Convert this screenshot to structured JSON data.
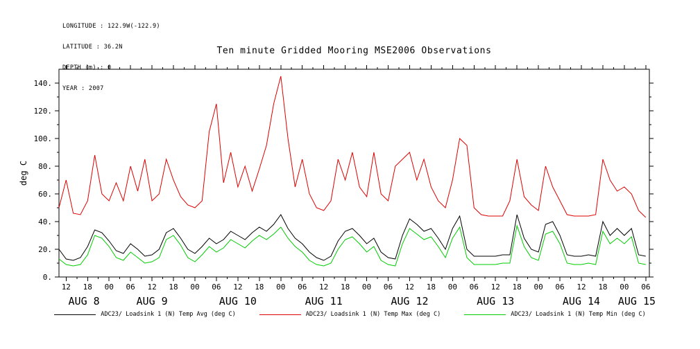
{
  "meta": {
    "longitude": "LONGITUDE : 122.9W(-122.9)",
    "latitude": "LATITUDE : 36.2N",
    "depth": "DEPTH (m) : 0",
    "year": "YEAR : 2007"
  },
  "title": "Ten minute Gridded Mooring MSE2006 Observations",
  "chart_data": {
    "type": "line",
    "title": "Ten minute Gridded Mooring MSE2006 Observations",
    "ylabel": "deg C",
    "xlabel": "",
    "ylim": [
      0,
      150
    ],
    "xlim": [
      10,
      175
    ],
    "grid": false,
    "legend_position": "bottom",
    "y_ticks": [
      0,
      20,
      40,
      60,
      80,
      100,
      120,
      140
    ],
    "y_tick_labels": [
      "0.",
      "20.",
      "40.",
      "60.",
      "80.",
      "100.",
      "120.",
      "140."
    ],
    "x_ticks": [
      12,
      18,
      24,
      30,
      36,
      42,
      48,
      54,
      60,
      66,
      72,
      78,
      84,
      90,
      96,
      102,
      108,
      114,
      120,
      126,
      132,
      138,
      144,
      150,
      156,
      162,
      168,
      174
    ],
    "x_tick_labels": [
      "12",
      "18",
      "00",
      "06",
      "12",
      "18",
      "00",
      "06",
      "12",
      "18",
      "00",
      "06",
      "12",
      "18",
      "00",
      "06",
      "12",
      "18",
      "00",
      "06",
      "12",
      "18",
      "00",
      "06",
      "12",
      "18",
      "00",
      "06"
    ],
    "x_dates": [
      {
        "t": 17,
        "label": "AUG 8"
      },
      {
        "t": 36,
        "label": "AUG 9"
      },
      {
        "t": 60,
        "label": "AUG 10"
      },
      {
        "t": 84,
        "label": "AUG 11"
      },
      {
        "t": 108,
        "label": "AUG 12"
      },
      {
        "t": 132,
        "label": "AUG 13"
      },
      {
        "t": 156,
        "label": "AUG 14"
      },
      {
        "t": 171.5,
        "label": "AUG 15"
      }
    ],
    "x_units": "hours since AUG 8 00:00 2007",
    "x": [
      10,
      12,
      14,
      16,
      18,
      20,
      22,
      24,
      26,
      28,
      30,
      32,
      34,
      36,
      38,
      40,
      42,
      44,
      46,
      48,
      50,
      52,
      54,
      56,
      58,
      60,
      62,
      64,
      66,
      68,
      70,
      72,
      74,
      76,
      78,
      80,
      82,
      84,
      86,
      88,
      90,
      92,
      94,
      96,
      98,
      100,
      102,
      104,
      106,
      108,
      110,
      112,
      114,
      116,
      118,
      120,
      122,
      124,
      126,
      128,
      130,
      132,
      134,
      136,
      138,
      140,
      142,
      144,
      146,
      148,
      150,
      152,
      154,
      156,
      158,
      160,
      162,
      164,
      166,
      168,
      170,
      172,
      174
    ],
    "series": [
      {
        "name": "ADC23/ Loadsink 1 (N) Temp Avg (deg C)",
        "color": "#000000",
        "values": [
          20,
          13,
          12,
          14,
          22,
          34,
          32,
          26,
          19,
          17,
          24,
          20,
          15,
          16,
          20,
          32,
          35,
          28,
          20,
          17,
          22,
          28,
          24,
          27,
          33,
          30,
          27,
          32,
          36,
          33,
          38,
          45,
          35,
          28,
          24,
          18,
          14,
          12,
          15,
          26,
          33,
          35,
          30,
          24,
          28,
          18,
          14,
          13,
          30,
          42,
          38,
          33,
          35,
          28,
          20,
          35,
          44,
          20,
          15,
          15,
          15,
          15,
          16,
          16,
          45,
          28,
          20,
          18,
          38,
          40,
          30,
          16,
          15,
          15,
          16,
          15,
          40,
          30,
          35,
          30,
          35,
          16,
          15
        ]
      },
      {
        "name": "ADC23/ Loadsink 1 (N) Temp Max (deg C)",
        "color": "#dd0000",
        "values": [
          50,
          70,
          46,
          45,
          55,
          88,
          60,
          55,
          68,
          55,
          80,
          62,
          85,
          55,
          60,
          85,
          70,
          58,
          52,
          50,
          55,
          105,
          125,
          68,
          90,
          65,
          80,
          62,
          78,
          95,
          125,
          145,
          100,
          65,
          85,
          60,
          50,
          48,
          55,
          85,
          70,
          90,
          65,
          58,
          90,
          60,
          55,
          80,
          85,
          90,
          70,
          85,
          65,
          55,
          50,
          70,
          100,
          95,
          50,
          45,
          44,
          44,
          44,
          55,
          85,
          58,
          52,
          48,
          80,
          65,
          55,
          45,
          44,
          44,
          44,
          45,
          85,
          70,
          62,
          65,
          60,
          48,
          43
        ]
      },
      {
        "name": "ADC23/ Loadsink 1 (N) Temp Min (deg C)",
        "color": "#00cc00",
        "values": [
          13,
          9,
          8,
          9,
          16,
          30,
          28,
          22,
          14,
          12,
          18,
          14,
          10,
          11,
          14,
          27,
          30,
          23,
          14,
          11,
          16,
          22,
          18,
          21,
          27,
          24,
          21,
          26,
          30,
          27,
          31,
          36,
          28,
          22,
          18,
          12,
          9,
          8,
          10,
          20,
          27,
          29,
          24,
          18,
          22,
          12,
          9,
          8,
          24,
          35,
          31,
          27,
          29,
          22,
          14,
          28,
          36,
          14,
          9,
          9,
          9,
          9,
          10,
          10,
          37,
          22,
          14,
          12,
          31,
          33,
          24,
          10,
          9,
          9,
          10,
          9,
          33,
          24,
          28,
          24,
          29,
          10,
          9
        ]
      }
    ]
  }
}
